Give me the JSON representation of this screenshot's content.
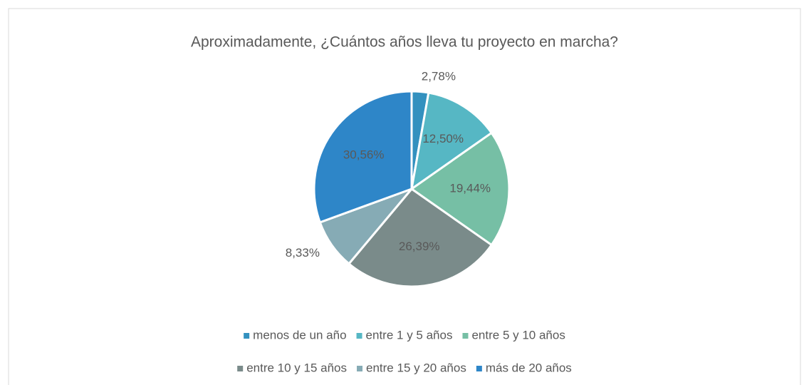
{
  "chart_data": {
    "type": "pie",
    "title": "Aproximadamente, ¿Cuántos años lleva tu proyecto en marcha?",
    "categories": [
      "menos de un año",
      "entre 1 y 5 años",
      "entre 5 y 10 años",
      "entre 10 y 15 años",
      "entre 15 y 20 años",
      "más de 20 años"
    ],
    "values": [
      2.78,
      12.5,
      19.44,
      26.39,
      8.33,
      30.56
    ],
    "value_labels": [
      "2,78%",
      "12,50%",
      "19,44%",
      "26,39%",
      "8,33%",
      "30,56%"
    ],
    "colors": [
      "#3391bf",
      "#56b7c4",
      "#76bfa5",
      "#7a8b8a",
      "#86abb5",
      "#2e86c8"
    ],
    "legend": "bottom"
  }
}
